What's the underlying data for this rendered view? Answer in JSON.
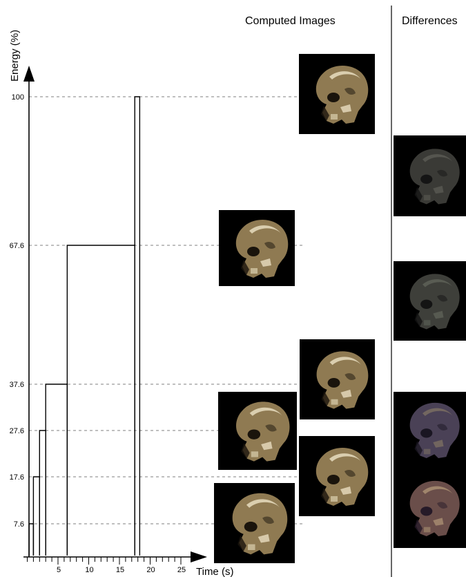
{
  "headers": {
    "computed": "Computed Images",
    "differences": "Differences"
  },
  "chart_data": {
    "type": "line",
    "ylabel": "Energy (%)",
    "xlabel": "Time (s)",
    "xlim": [
      0,
      27
    ],
    "ylim": [
      0,
      100
    ],
    "ytick_labels": [
      "7.6",
      "17.6",
      "27.6",
      "37.6",
      "67.6",
      "100"
    ],
    "ytick_values": [
      7.6,
      17.6,
      27.6,
      37.6,
      67.6,
      100
    ],
    "xtick_labels": [
      "5",
      "10",
      "15",
      "20",
      "25"
    ],
    "xtick_values": [
      5,
      10,
      15,
      20,
      25
    ],
    "steps": [
      {
        "t_start": 0.3,
        "t_end": 1.0,
        "energy": 7.6
      },
      {
        "t_start": 1.0,
        "t_end": 2.0,
        "energy": 17.6
      },
      {
        "t_start": 2.0,
        "t_end": 3.0,
        "energy": 27.6
      },
      {
        "t_start": 3.0,
        "t_end": 6.5,
        "energy": 37.6
      },
      {
        "t_start": 6.5,
        "t_end": 17.5,
        "energy": 67.6
      },
      {
        "t_start": 17.5,
        "t_end": 18.3,
        "energy": 100
      }
    ]
  },
  "images": {
    "computed": [
      {
        "energy": 100,
        "icon": "skull-xray-icon"
      },
      {
        "energy": 67.6,
        "icon": "skull-xray-icon"
      },
      {
        "energy": 37.6,
        "icon": "skull-xray-icon"
      },
      {
        "energy": 27.6,
        "icon": "skull-xray-icon"
      },
      {
        "energy": 17.6,
        "icon": "skull-xray-icon"
      },
      {
        "energy": 7.6,
        "icon": "skull-xray-icon"
      }
    ],
    "differences": [
      {
        "icon": "skull-difference-icon"
      },
      {
        "icon": "skull-difference-icon"
      },
      {
        "icon": "skull-difference-icon"
      },
      {
        "icon": "skull-difference-icon"
      }
    ]
  }
}
